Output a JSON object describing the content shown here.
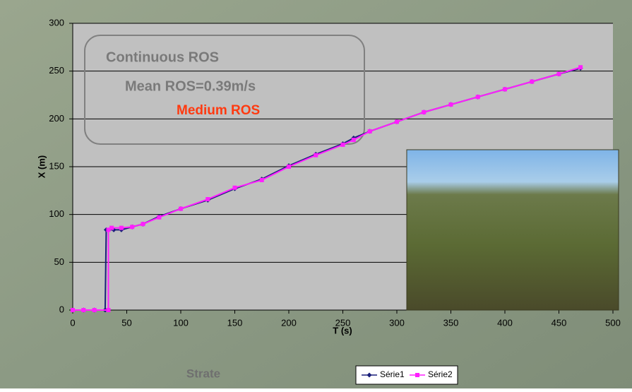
{
  "chart_data": {
    "type": "line",
    "xlabel": "T (s)",
    "ylabel": "X (m)",
    "caption": "Strate",
    "annotations": [
      {
        "text": "Continuous ROS",
        "color": "#7a7a7a"
      },
      {
        "text": "Mean ROS=0.39m/s",
        "color": "#7a7a7a"
      },
      {
        "text": "Medium ROS",
        "color": "#ff3a10"
      }
    ],
    "xlim": [
      0,
      500
    ],
    "xticks": [
      0,
      50,
      100,
      150,
      200,
      250,
      300,
      350,
      400,
      450,
      500
    ],
    "ylim": [
      0,
      300
    ],
    "yticks": [
      0,
      50,
      100,
      150,
      200,
      250,
      300
    ],
    "grid": true,
    "legend": "bottom",
    "series": [
      {
        "name": "Série1",
        "color": "#1a1f7a",
        "marker": "diamond",
        "x": [
          0,
          10,
          20,
          30,
          31,
          38,
          45,
          55,
          65,
          80,
          100,
          125,
          150,
          175,
          200,
          225,
          250,
          260,
          275,
          300,
          325,
          350,
          375,
          400,
          425,
          450,
          470
        ],
        "values": [
          0,
          0,
          0,
          0,
          84,
          84,
          84,
          87,
          90,
          98,
          106,
          115,
          127,
          137,
          151,
          163,
          174,
          180,
          187,
          197,
          207,
          215,
          223,
          231,
          239,
          247,
          253
        ]
      },
      {
        "name": "Série2",
        "color": "#ff1fff",
        "marker": "square",
        "x": [
          0,
          10,
          20,
          33,
          33,
          36,
          45,
          55,
          65,
          80,
          100,
          125,
          150,
          175,
          200,
          225,
          250,
          260,
          275,
          300,
          325,
          350,
          375,
          400,
          425,
          450,
          470
        ],
        "values": [
          0,
          0,
          0,
          0,
          84,
          86,
          86,
          87,
          90,
          97,
          106,
          116,
          128,
          136,
          150,
          162,
          173,
          178,
          187,
          197,
          207,
          215,
          223,
          231,
          239,
          247,
          254
        ]
      }
    ]
  }
}
